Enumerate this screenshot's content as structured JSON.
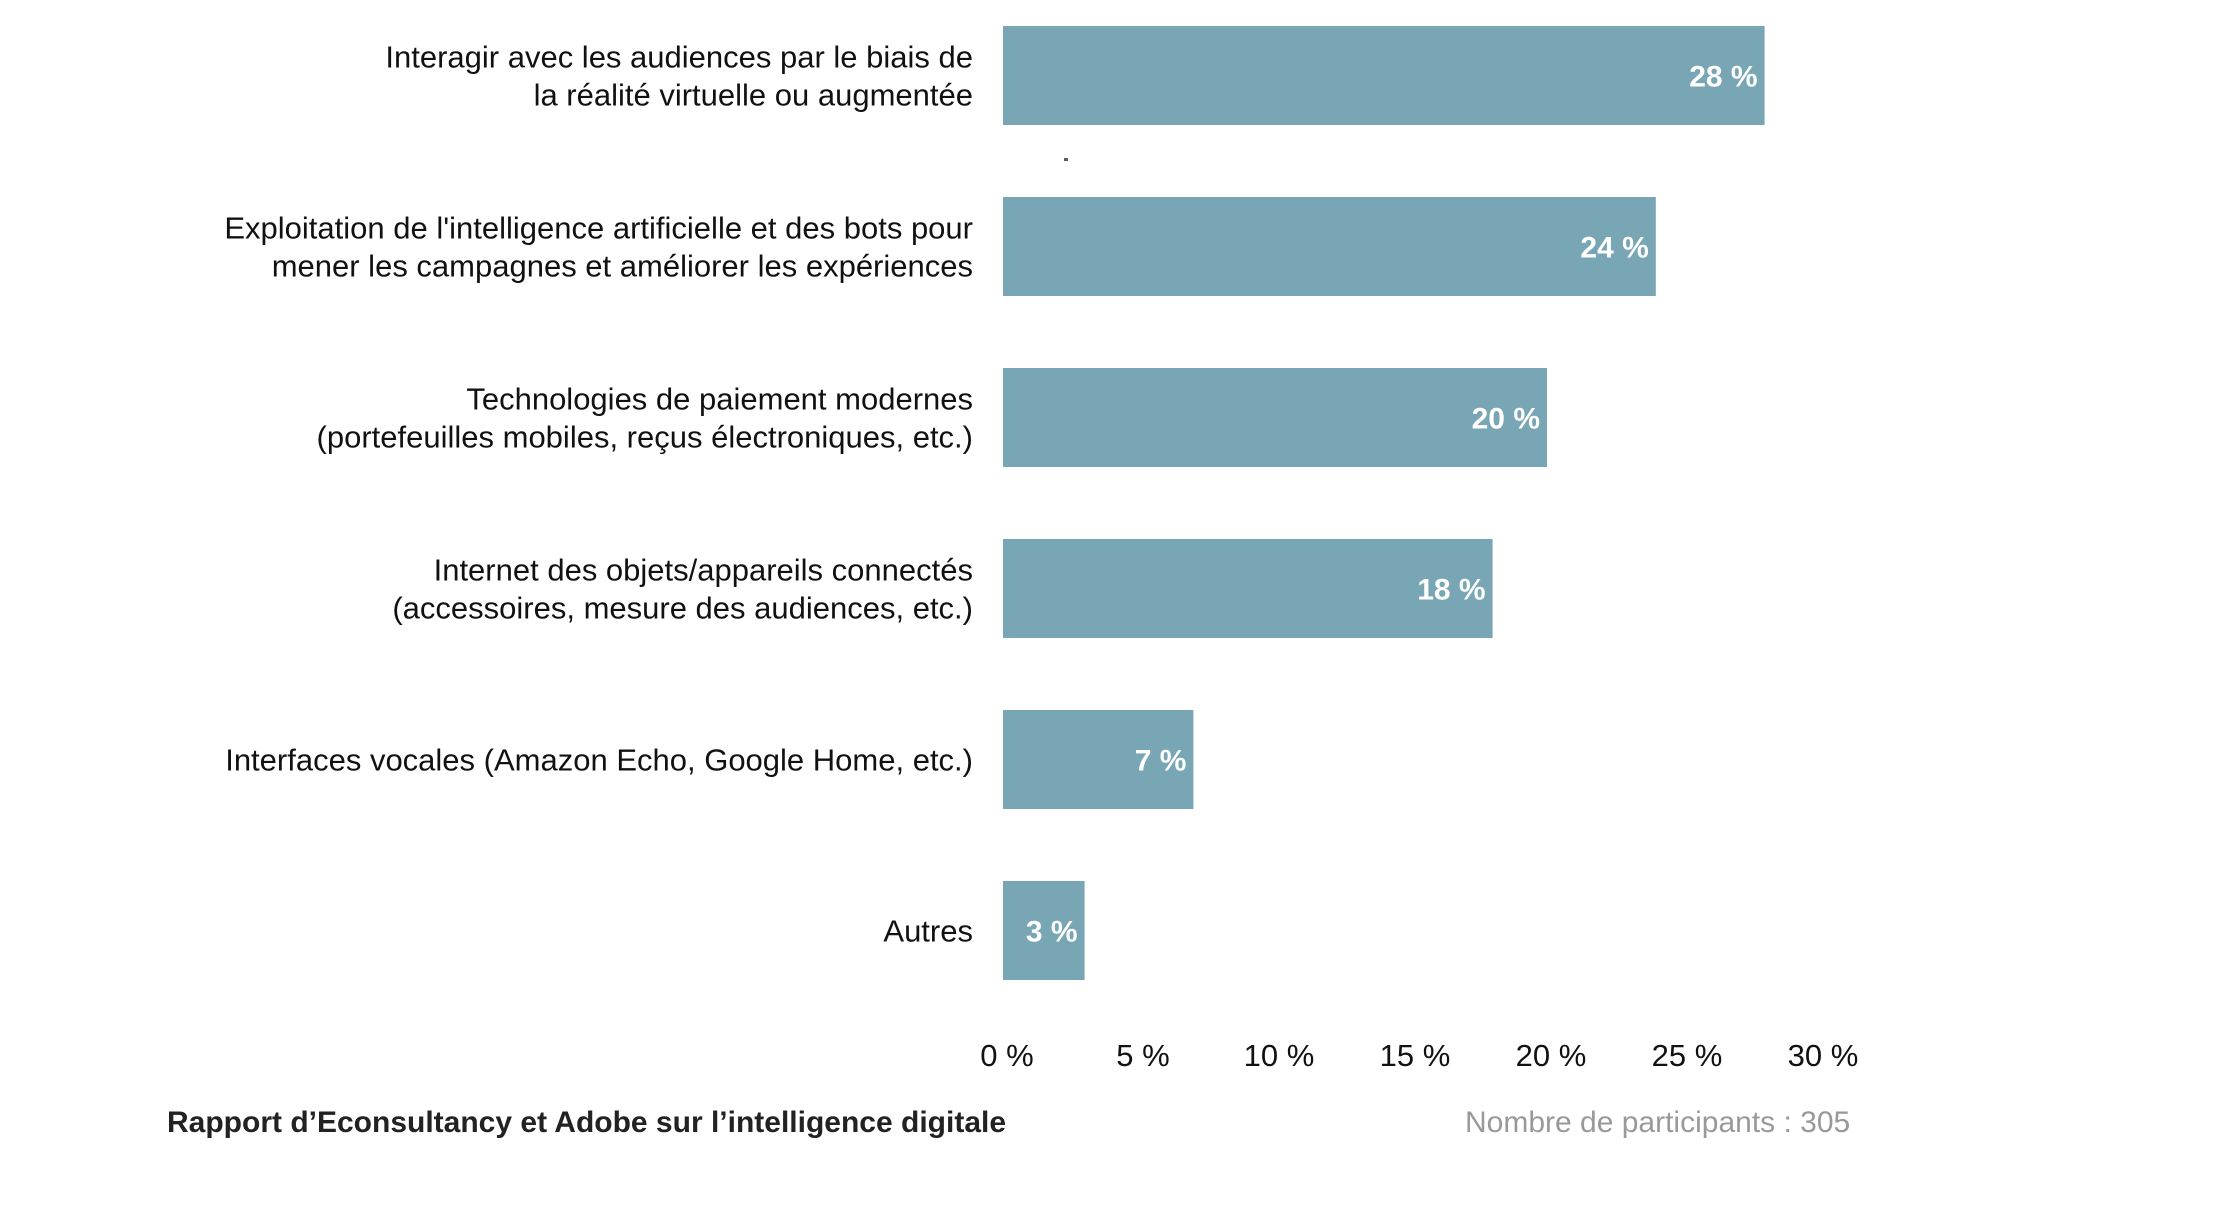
{
  "chart_data": {
    "type": "bar",
    "orientation": "horizontal",
    "title": "",
    "xlabel": "",
    "ylabel": "",
    "categories": [
      [
        "Interagir avec les audiences par le biais de",
        "la réalité virtuelle ou augmentée"
      ],
      [
        "Exploitation de l'intelligence artificielle et des bots pour",
        "mener les campagnes et améliorer les expériences"
      ],
      [
        "Technologies de paiement modernes",
        "(portefeuilles mobiles, reçus électroniques, etc.)"
      ],
      [
        "Internet des objets/appareils connectés",
        "(accessoires, mesure des audiences, etc.)"
      ],
      [
        "Interfaces vocales (Amazon Echo, Google Home, etc.)"
      ],
      [
        "Autres"
      ]
    ],
    "values": [
      28,
      24,
      20,
      18,
      7,
      3
    ],
    "value_labels": [
      "28 %",
      "24 %",
      "20 %",
      "18 %",
      "7 %",
      "3 %"
    ],
    "xlim": [
      0,
      30
    ],
    "xticks": [
      0,
      5,
      10,
      15,
      20,
      25,
      30
    ],
    "xtick_labels": [
      "0 %",
      "5 %",
      "10 %",
      "15 %",
      "20 %",
      "25 %",
      "30 %"
    ],
    "grid": false,
    "legend": "none",
    "bar_color": "#78a6b4",
    "value_label_color": "#ffffff"
  },
  "footer": {
    "source": "Rapport d’Econsultancy et Adobe sur l’intelligence digitale",
    "participants": "Nombre de participants : 305"
  }
}
